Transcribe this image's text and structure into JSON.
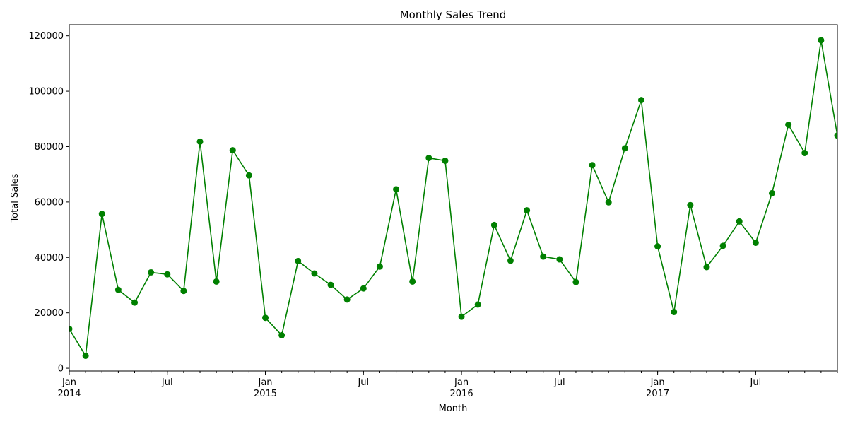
{
  "chart_data": {
    "type": "line",
    "title": "Monthly Sales Trend",
    "xlabel": "Month",
    "ylabel": "Total Sales",
    "ylim": [
      -1000,
      124000
    ],
    "yticks": [
      0,
      20000,
      40000,
      60000,
      80000,
      100000,
      120000
    ],
    "ytick_labels": [
      "0",
      "20000",
      "40000",
      "60000",
      "80000",
      "100000",
      "120000"
    ],
    "x_major_ticks": [
      {
        "month_index": 0,
        "label": "Jan",
        "year": "2014"
      },
      {
        "month_index": 6,
        "label": "Jul",
        "year": ""
      },
      {
        "month_index": 12,
        "label": "Jan",
        "year": "2015"
      },
      {
        "month_index": 18,
        "label": "Jul",
        "year": ""
      },
      {
        "month_index": 24,
        "label": "Jan",
        "year": "2016"
      },
      {
        "month_index": 30,
        "label": "Jul",
        "year": ""
      },
      {
        "month_index": 36,
        "label": "Jan",
        "year": "2017"
      },
      {
        "month_index": 42,
        "label": "Jul",
        "year": ""
      }
    ],
    "grid": false,
    "series": [
      {
        "color": "#008000",
        "marker": "circle",
        "values": [
          14200,
          4500,
          55700,
          28300,
          23700,
          34600,
          33900,
          27900,
          81800,
          31300,
          78700,
          69600,
          18200,
          11900,
          38700,
          34200,
          30100,
          24800,
          28800,
          36700,
          64600,
          31300,
          75900,
          74900,
          18600,
          23000,
          51700,
          38800,
          57000,
          40300,
          39300,
          31100,
          73300,
          59900,
          79400,
          96800,
          44000,
          20300,
          58900,
          36500,
          44200,
          53000,
          45300,
          63200,
          87900,
          77700,
          118400,
          84000
        ]
      }
    ]
  }
}
